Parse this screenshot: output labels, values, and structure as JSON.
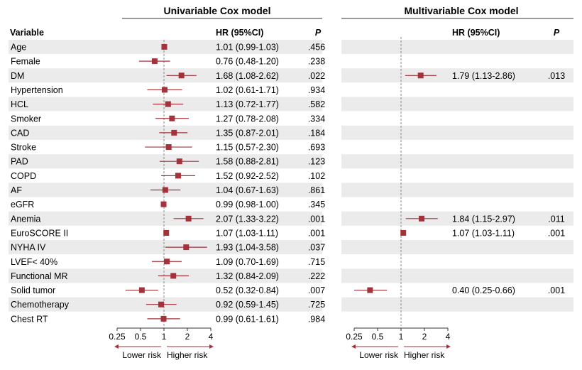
{
  "chart_data": [
    {
      "type": "forest",
      "title": "Univariable Cox model",
      "columns": {
        "variable": "Variable",
        "hr": "HR (95%CI)",
        "p": "P"
      },
      "x_scale": "log2",
      "xlim": [
        0.25,
        4
      ],
      "ticks": [
        "0.25",
        "0.5",
        "1",
        "2",
        "4"
      ],
      "tick_values": [
        0.25,
        0.5,
        1,
        2,
        4
      ],
      "reference_line": 1,
      "lower_label": "Lower risk",
      "higher_label": "Higher risk",
      "marker_color": "#a3323a",
      "rows": [
        {
          "variable": "Age",
          "hr": 1.01,
          "lo": 0.99,
          "hi": 1.03,
          "hr_text": "1.01 (0.99-1.03)",
          "p": ".456"
        },
        {
          "variable": "Female",
          "hr": 0.76,
          "lo": 0.48,
          "hi": 1.2,
          "hr_text": "0.76 (0.48-1.20)",
          "p": ".238"
        },
        {
          "variable": "DM",
          "hr": 1.68,
          "lo": 1.08,
          "hi": 2.62,
          "hr_text": "1.68 (1.08-2.62)",
          "p": ".022"
        },
        {
          "variable": "Hypertension",
          "hr": 1.02,
          "lo": 0.61,
          "hi": 1.71,
          "hr_text": "1.02 (0.61-1.71)",
          "p": ".934"
        },
        {
          "variable": "HCL",
          "hr": 1.13,
          "lo": 0.72,
          "hi": 1.77,
          "hr_text": "1.13 (0.72-1.77)",
          "p": ".582"
        },
        {
          "variable": "Smoker",
          "hr": 1.27,
          "lo": 0.78,
          "hi": 2.08,
          "hr_text": "1.27 (0.78-2.08)",
          "p": ".334"
        },
        {
          "variable": "CAD",
          "hr": 1.35,
          "lo": 0.87,
          "hi": 2.01,
          "hr_text": "1.35 (0.87-2.01)",
          "p": ".184"
        },
        {
          "variable": "Stroke",
          "hr": 1.15,
          "lo": 0.57,
          "hi": 2.3,
          "hr_text": "1.15 (0.57-2.30)",
          "p": ".693"
        },
        {
          "variable": "PAD",
          "hr": 1.58,
          "lo": 0.88,
          "hi": 2.81,
          "hr_text": "1.58 (0.88-2.81)",
          "p": ".123"
        },
        {
          "variable": "COPD",
          "hr": 1.52,
          "lo": 0.92,
          "hi": 2.52,
          "hr_text": "1.52 (0.92-2.52)",
          "p": ".102"
        },
        {
          "variable": "AF",
          "hr": 1.04,
          "lo": 0.67,
          "hi": 1.63,
          "hr_text": "1.04 (0.67-1.63)",
          "p": ".861"
        },
        {
          "variable": "eGFR",
          "hr": 0.99,
          "lo": 0.98,
          "hi": 1.0,
          "hr_text": "0.99 (0.98-1.00)",
          "p": ".345"
        },
        {
          "variable": "Anemia",
          "hr": 2.07,
          "lo": 1.33,
          "hi": 3.22,
          "hr_text": "2.07 (1.33-3.22)",
          "p": ".001"
        },
        {
          "variable": "EuroSCORE II",
          "hr": 1.07,
          "lo": 1.03,
          "hi": 1.11,
          "hr_text": "1.07 (1.03-1.11)",
          "p": ".001"
        },
        {
          "variable": "NYHA IV",
          "hr": 1.93,
          "lo": 1.04,
          "hi": 3.58,
          "hr_text": "1.93 (1.04-3.58)",
          "p": ".037"
        },
        {
          "variable": "LVEF< 40%",
          "hr": 1.09,
          "lo": 0.7,
          "hi": 1.69,
          "hr_text": "1.09 (0.70-1.69)",
          "p": ".715"
        },
        {
          "variable": "Functional MR",
          "hr": 1.32,
          "lo": 0.84,
          "hi": 2.09,
          "hr_text": "1.32 (0.84-2.09)",
          "p": ".222"
        },
        {
          "variable": "Solid tumor",
          "hr": 0.52,
          "lo": 0.32,
          "hi": 0.84,
          "hr_text": "0.52 (0.32-0.84)",
          "p": ".007"
        },
        {
          "variable": "Chemotherapy",
          "hr": 0.92,
          "lo": 0.59,
          "hi": 1.45,
          "hr_text": "0.92 (0.59-1.45)",
          "p": ".725"
        },
        {
          "variable": "Chest RT",
          "hr": 0.99,
          "lo": 0.61,
          "hi": 1.61,
          "hr_text": "0.99 (0.61-1.61)",
          "p": ".984"
        }
      ]
    },
    {
      "type": "forest",
      "title": "Multivariable Cox model",
      "columns": {
        "hr": "HR (95%CI)",
        "p": "P"
      },
      "x_scale": "log2",
      "xlim": [
        0.25,
        4
      ],
      "ticks": [
        "0.25",
        "0.5",
        "1",
        "2",
        "4"
      ],
      "tick_values": [
        0.25,
        0.5,
        1,
        2,
        4
      ],
      "reference_line": 1,
      "lower_label": "Lower risk",
      "higher_label": "Higher risk",
      "marker_color": "#a3323a",
      "rows": [
        {
          "variable": "DM",
          "row_index": 2,
          "hr": 1.79,
          "lo": 1.13,
          "hi": 2.86,
          "hr_text": "1.79 (1.13-2.86)",
          "p": ".013"
        },
        {
          "variable": "Anemia",
          "row_index": 12,
          "hr": 1.84,
          "lo": 1.15,
          "hi": 2.97,
          "hr_text": "1.84 (1.15-2.97)",
          "p": ".011"
        },
        {
          "variable": "EuroSCORE II",
          "row_index": 13,
          "hr": 1.07,
          "lo": 1.03,
          "hi": 1.11,
          "hr_text": "1.07 (1.03-1.11)",
          "p": ".001"
        },
        {
          "variable": "Solid tumor",
          "row_index": 17,
          "hr": 0.4,
          "lo": 0.25,
          "hi": 0.66,
          "hr_text": "0.40 (0.25-0.66)",
          "p": ".001"
        }
      ]
    }
  ]
}
